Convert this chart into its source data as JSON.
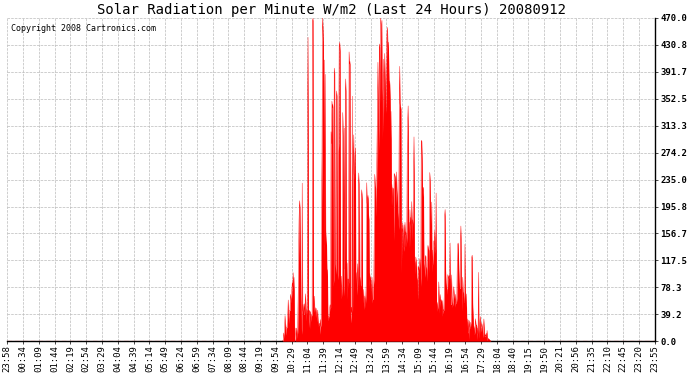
{
  "title": "Solar Radiation per Minute W/m2 (Last 24 Hours) 20080912",
  "copyright_text": "Copyright 2008 Cartronics.com",
  "fill_color": "#FF0000",
  "line_color": "#FF0000",
  "dashed_line_color": "#FF0000",
  "background_color": "#FFFFFF",
  "grid_color": "#BBBBBB",
  "yticks": [
    0.0,
    39.2,
    78.3,
    117.5,
    156.7,
    195.8,
    235.0,
    274.2,
    313.3,
    352.5,
    391.7,
    430.8,
    470.0
  ],
  "ymax": 470.0,
  "ymin": 0.0,
  "title_fontsize": 10,
  "tick_fontsize": 6.5,
  "copyright_fontsize": 6,
  "time_labels": [
    "23:58",
    "00:34",
    "01:09",
    "01:44",
    "02:19",
    "02:54",
    "03:29",
    "04:04",
    "04:39",
    "05:14",
    "05:49",
    "06:24",
    "06:59",
    "07:34",
    "08:09",
    "08:44",
    "09:19",
    "09:54",
    "10:29",
    "11:04",
    "11:39",
    "12:14",
    "12:49",
    "13:24",
    "13:59",
    "14:34",
    "15:09",
    "15:44",
    "16:19",
    "16:54",
    "17:29",
    "18:04",
    "18:40",
    "19:15",
    "19:50",
    "20:21",
    "20:56",
    "21:35",
    "22:10",
    "22:45",
    "23:20",
    "23:55"
  ]
}
